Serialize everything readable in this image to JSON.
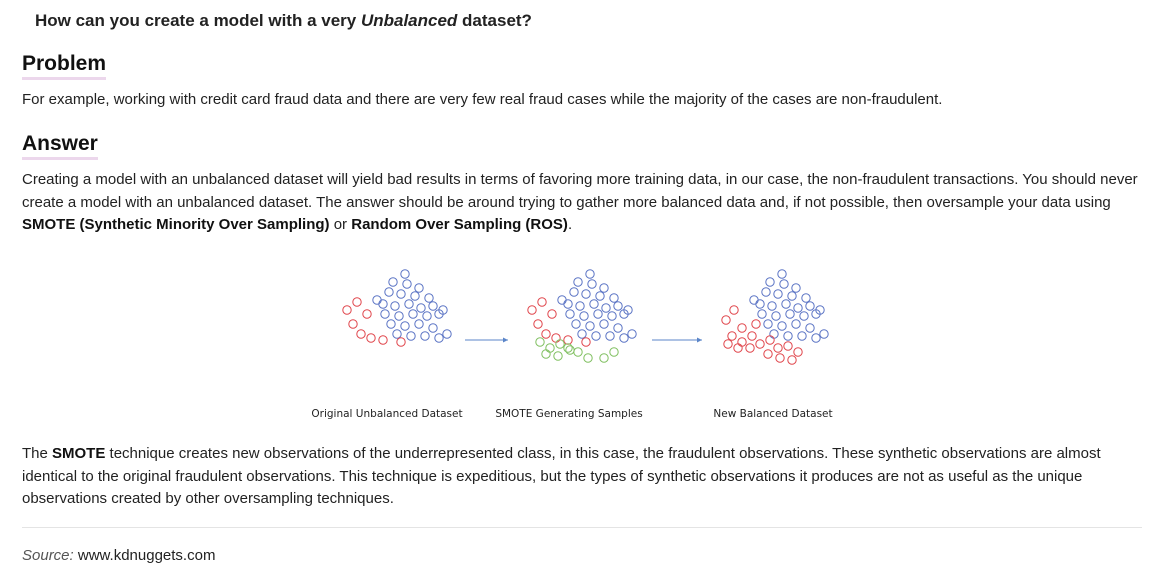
{
  "question": {
    "prefix": "How can you create a model with a very ",
    "emphasis": "Unbalanced",
    "suffix": " dataset?"
  },
  "problem": {
    "title": "Problem",
    "text": "For example, working with credit card fraud data and there are very few real fraud cases while the majority of the cases are non-fraudulent."
  },
  "answer": {
    "title": "Answer",
    "text_part1": "Creating a model with an unbalanced dataset will yield bad results in terms of favoring more training data, in our case, the non-fraudulent transactions. You should never create a model with an unbalanced dataset. The answer should be around trying to gather more balanced data and, if not possible, then oversample your data using ",
    "smote_term": "SMOTE (Synthetic Minority Over Sampling)",
    "connector": " or ",
    "ros_term": "Random Over Sampling (ROS)",
    "end": "."
  },
  "figure": {
    "captions": [
      "Original Unbalanced Dataset",
      "SMOTE Generating Samples",
      "New Balanced Dataset"
    ],
    "colors": {
      "majority": "#5a73c4",
      "minority": "#e0454b",
      "synthetic": "#7fbf5f",
      "arrow": "#5b86c9"
    }
  },
  "smote_paragraph": {
    "lead": "The ",
    "term": "SMOTE",
    "text": " technique creates new observations of the underrepresented class, in this case, the fraudulent observations. These synthetic observations are almost identical to the original fraudulent observations. This technique is expeditious, but the types of synthetic observations it produces are not as useful as the unique observations created by other oversampling techniques."
  },
  "source": {
    "label": "Source:",
    "value": "www.kdnuggets.com"
  }
}
